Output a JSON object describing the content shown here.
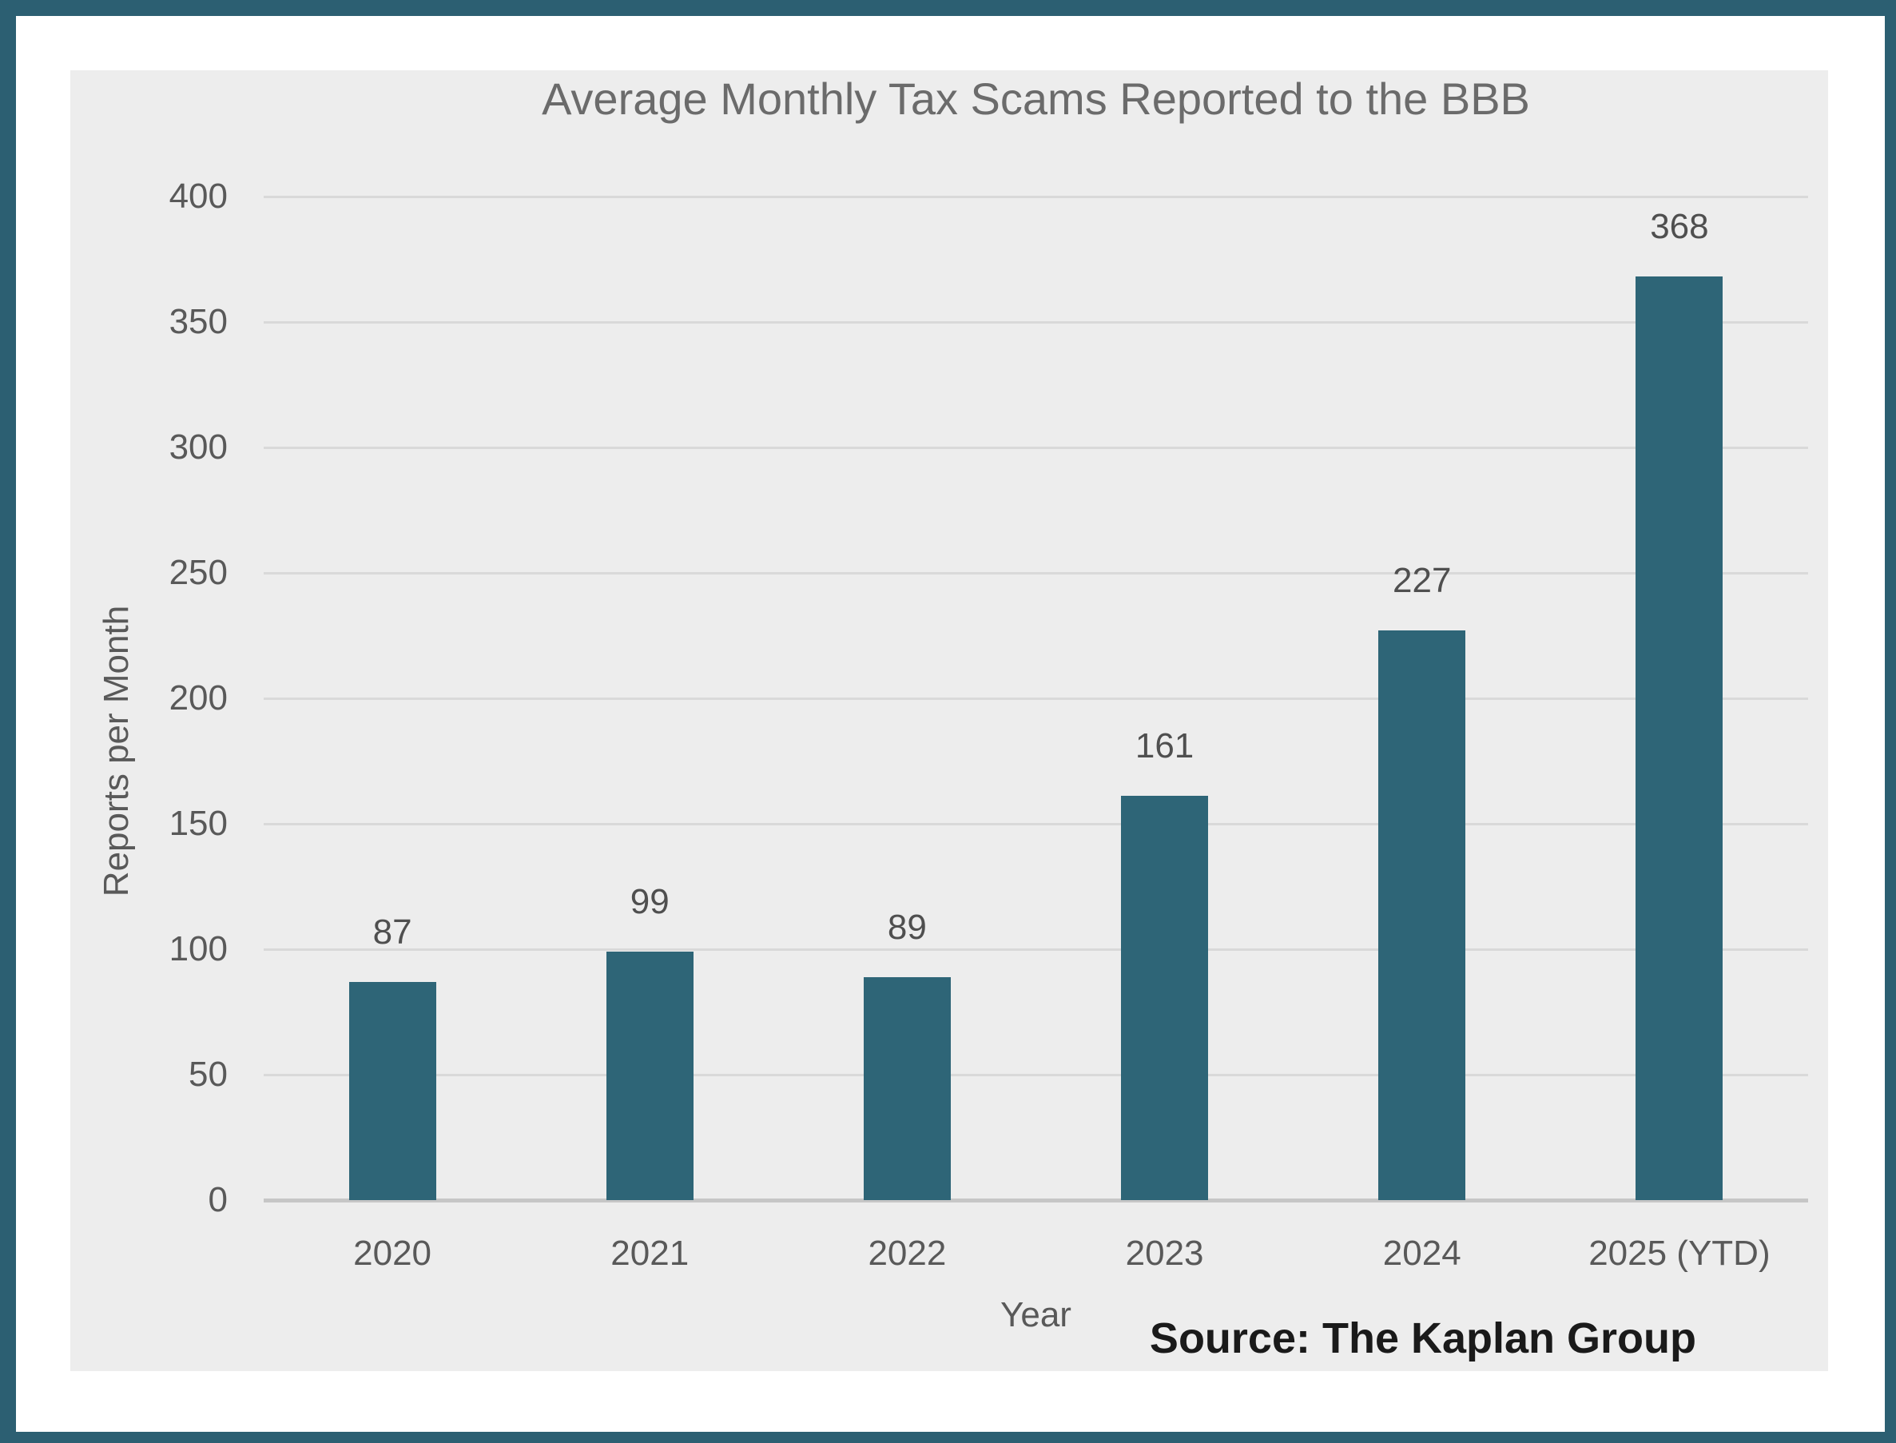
{
  "chart_data": {
    "type": "bar",
    "title": "Average Monthly Tax Scams Reported to the BBB",
    "categories": [
      "2020",
      "2021",
      "2022",
      "2023",
      "2024",
      "2025 (YTD)"
    ],
    "values": [
      87,
      99,
      89,
      161,
      227,
      368
    ],
    "xlabel": "Year",
    "ylabel": "Reports per Month",
    "ylim": [
      0,
      400
    ],
    "yticks": [
      0,
      50,
      100,
      150,
      200,
      250,
      300,
      350,
      400
    ],
    "grid": true,
    "legend": false,
    "source_note": "Source: The Kaplan Group",
    "colors": {
      "bar": "#2e6577",
      "panel_background": "#ededed",
      "page_background": "#ffffff",
      "frame_border": "#2c5f72",
      "gridline": "#d9d9d9",
      "axis_line": "#c6c6c6",
      "title_text": "#6b6b6b",
      "tick_text": "#595959",
      "value_label_text": "#4f4f4f",
      "source_text": "#1a1a1a"
    }
  }
}
